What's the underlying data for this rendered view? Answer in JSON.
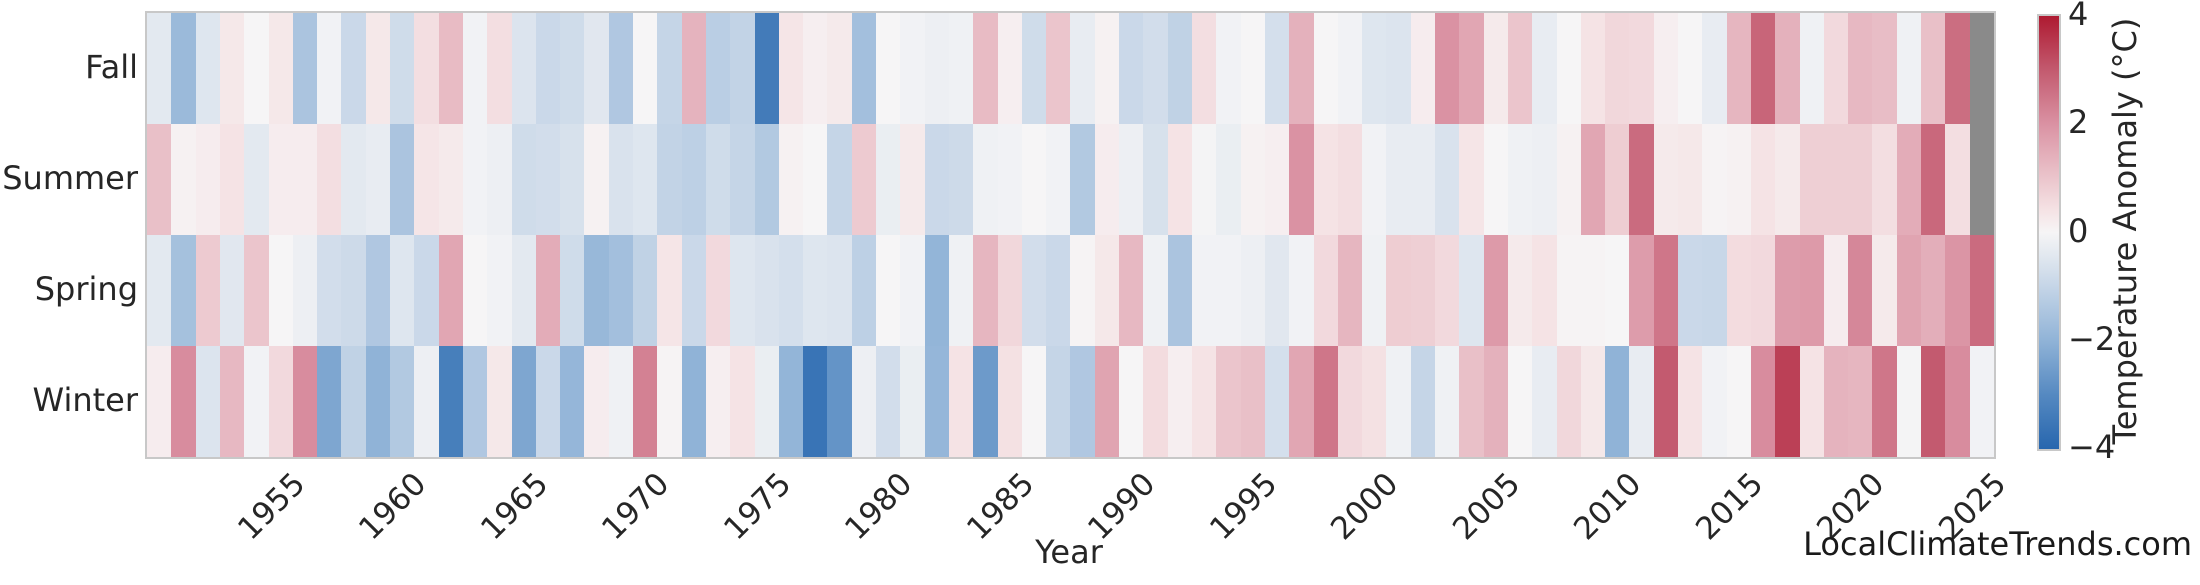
{
  "watermark": "LocalClimateTrends.com",
  "colors": {
    "background": "#ffffff",
    "frame": "#c8c8c8",
    "text": "#262626",
    "nan_cell": "#8a8a8a",
    "colormap_stops": [
      [
        -4,
        "#2766ae"
      ],
      [
        -3,
        "#5589c1"
      ],
      [
        -2,
        "#90b3d7"
      ],
      [
        -1,
        "#c5d5e7"
      ],
      [
        -0.4,
        "#e3e9f0"
      ],
      [
        0,
        "#f6f5f6"
      ],
      [
        0.4,
        "#f5e3e5"
      ],
      [
        1,
        "#ebc5cc"
      ],
      [
        2,
        "#da92a3"
      ],
      [
        3,
        "#c35a6f"
      ],
      [
        4,
        "#ae1a31"
      ]
    ]
  },
  "chart_data": {
    "type": "heatmap",
    "title": "",
    "xlabel": "Year",
    "colorbar_label": "Temperature Anomaly (°C)",
    "vmin": -4,
    "vmax": 4,
    "x_tick_labels": [
      1955,
      1960,
      1965,
      1970,
      1975,
      1980,
      1985,
      1990,
      1995,
      2000,
      2005,
      2010,
      2015,
      2020,
      2025
    ],
    "colorbar_ticks": [
      {
        "value": 4,
        "label": "4"
      },
      {
        "value": 2,
        "label": "2"
      },
      {
        "value": 0,
        "label": "0"
      },
      {
        "value": -2,
        "label": "−2"
      },
      {
        "value": -4,
        "label": "−4"
      }
    ],
    "rows": [
      "Fall",
      "Summer",
      "Spring",
      "Winter"
    ],
    "years": [
      1950,
      1951,
      1952,
      1953,
      1954,
      1955,
      1956,
      1957,
      1958,
      1959,
      1960,
      1961,
      1962,
      1963,
      1964,
      1965,
      1966,
      1967,
      1968,
      1969,
      1970,
      1971,
      1972,
      1973,
      1974,
      1975,
      1976,
      1977,
      1978,
      1979,
      1980,
      1981,
      1982,
      1983,
      1984,
      1985,
      1986,
      1987,
      1988,
      1989,
      1990,
      1991,
      1992,
      1993,
      1994,
      1995,
      1996,
      1997,
      1998,
      1999,
      2000,
      2001,
      2002,
      2003,
      2004,
      2005,
      2006,
      2007,
      2008,
      2009,
      2010,
      2011,
      2012,
      2013,
      2014,
      2015,
      2016,
      2017,
      2018,
      2019,
      2020,
      2021,
      2022,
      2023,
      2024,
      2025
    ],
    "values": {
      "Fall": [
        -0.4,
        -1.8,
        -0.5,
        0.3,
        0.0,
        0.3,
        -1.5,
        -0.1,
        -0.9,
        0.3,
        -0.8,
        0.5,
        1.2,
        -0.1,
        0.5,
        -0.55,
        -0.9,
        -0.8,
        -0.45,
        -1.4,
        0.0,
        -1.0,
        1.35,
        -1.2,
        -1.05,
        -3.4,
        0.35,
        0.15,
        0.25,
        -1.65,
        0.0,
        -0.1,
        -0.2,
        -0.15,
        1.2,
        0.15,
        -0.8,
        1.0,
        -0.3,
        0.1,
        -0.9,
        -0.75,
        -1.1,
        0.5,
        -0.1,
        0.0,
        -0.7,
        1.4,
        0.0,
        -0.1,
        -0.5,
        -0.55,
        0.2,
        2.0,
        1.6,
        0.25,
        1.0,
        -0.3,
        0.0,
        0.4,
        0.65,
        0.6,
        0.15,
        0.0,
        -0.3,
        1.3,
        2.8,
        1.4,
        -0.15,
        0.6,
        1.25,
        1.15,
        -0.15,
        1.1,
        2.65,
        null
      ],
      "Summer": [
        1.1,
        0.1,
        0.2,
        0.4,
        -0.4,
        0.2,
        0.2,
        0.5,
        -0.4,
        -0.3,
        -1.5,
        0.35,
        0.25,
        -0.1,
        -0.2,
        -0.8,
        -0.75,
        -0.65,
        0.1,
        -0.6,
        -0.5,
        -1.05,
        -1.15,
        -0.8,
        -1.0,
        -1.35,
        0.1,
        0.0,
        -1.0,
        0.9,
        -0.25,
        0.25,
        -0.9,
        -0.85,
        -0.15,
        -0.1,
        0.0,
        -0.1,
        -1.35,
        0.2,
        -0.2,
        -0.65,
        0.4,
        -0.05,
        -0.25,
        0.1,
        0.15,
        2.0,
        0.4,
        0.5,
        -0.1,
        -0.3,
        -0.3,
        -0.6,
        0.35,
        0.0,
        -0.15,
        -0.2,
        0.1,
        1.6,
        0.85,
        2.7,
        0.25,
        0.3,
        0.05,
        0.1,
        0.4,
        0.25,
        0.8,
        0.8,
        0.8,
        0.5,
        1.5,
        2.75,
        0.5,
        null
      ],
      "Spring": [
        -0.4,
        -1.6,
        0.9,
        -0.45,
        1.0,
        0.0,
        -0.2,
        -0.75,
        -0.85,
        -1.4,
        -0.5,
        -0.9,
        1.6,
        0.0,
        -0.1,
        -0.4,
        1.5,
        -0.8,
        -1.85,
        -1.65,
        -1.1,
        0.35,
        -0.9,
        0.6,
        -0.5,
        -0.6,
        -0.7,
        -0.5,
        -0.55,
        -1.15,
        0.0,
        -0.1,
        -1.95,
        -0.15,
        1.3,
        0.65,
        -0.75,
        -0.9,
        0.05,
        0.3,
        1.25,
        -0.15,
        -1.5,
        -0.1,
        -0.1,
        -0.2,
        -0.45,
        -0.1,
        0.6,
        1.3,
        -0.15,
        0.85,
        0.8,
        0.6,
        -0.5,
        1.85,
        0.25,
        0.4,
        0.05,
        0.05,
        0.0,
        1.8,
        2.5,
        -0.9,
        -0.95,
        0.55,
        0.6,
        1.8,
        1.85,
        0.2,
        2.2,
        0.25,
        1.65,
        1.45,
        1.95,
        2.7
      ],
      "Winter": [
        0.2,
        2.1,
        -0.55,
        1.25,
        -0.1,
        0.6,
        2.1,
        -2.3,
        -1.1,
        -2.0,
        -1.35,
        -0.2,
        -3.3,
        -1.4,
        0.3,
        -2.3,
        -0.9,
        -1.9,
        0.2,
        -0.15,
        2.3,
        0.05,
        -2.0,
        0.15,
        0.4,
        -0.25,
        -1.95,
        -3.6,
        -2.75,
        -0.2,
        -0.75,
        -0.25,
        -1.9,
        0.4,
        -2.6,
        0.45,
        0.0,
        -1.0,
        -1.4,
        1.65,
        0.0,
        0.55,
        0.15,
        0.4,
        1.0,
        1.1,
        -0.7,
        1.6,
        2.5,
        0.6,
        0.45,
        -0.15,
        -1.0,
        -0.15,
        1.1,
        1.4,
        0.0,
        -0.3,
        0.65,
        0.3,
        -2.0,
        -0.3,
        3.0,
        0.4,
        -0.1,
        0.0,
        2.1,
        3.4,
        0.4,
        1.35,
        1.3,
        2.5,
        -0.05,
        3.0,
        2.1,
        -0.1
      ]
    }
  }
}
